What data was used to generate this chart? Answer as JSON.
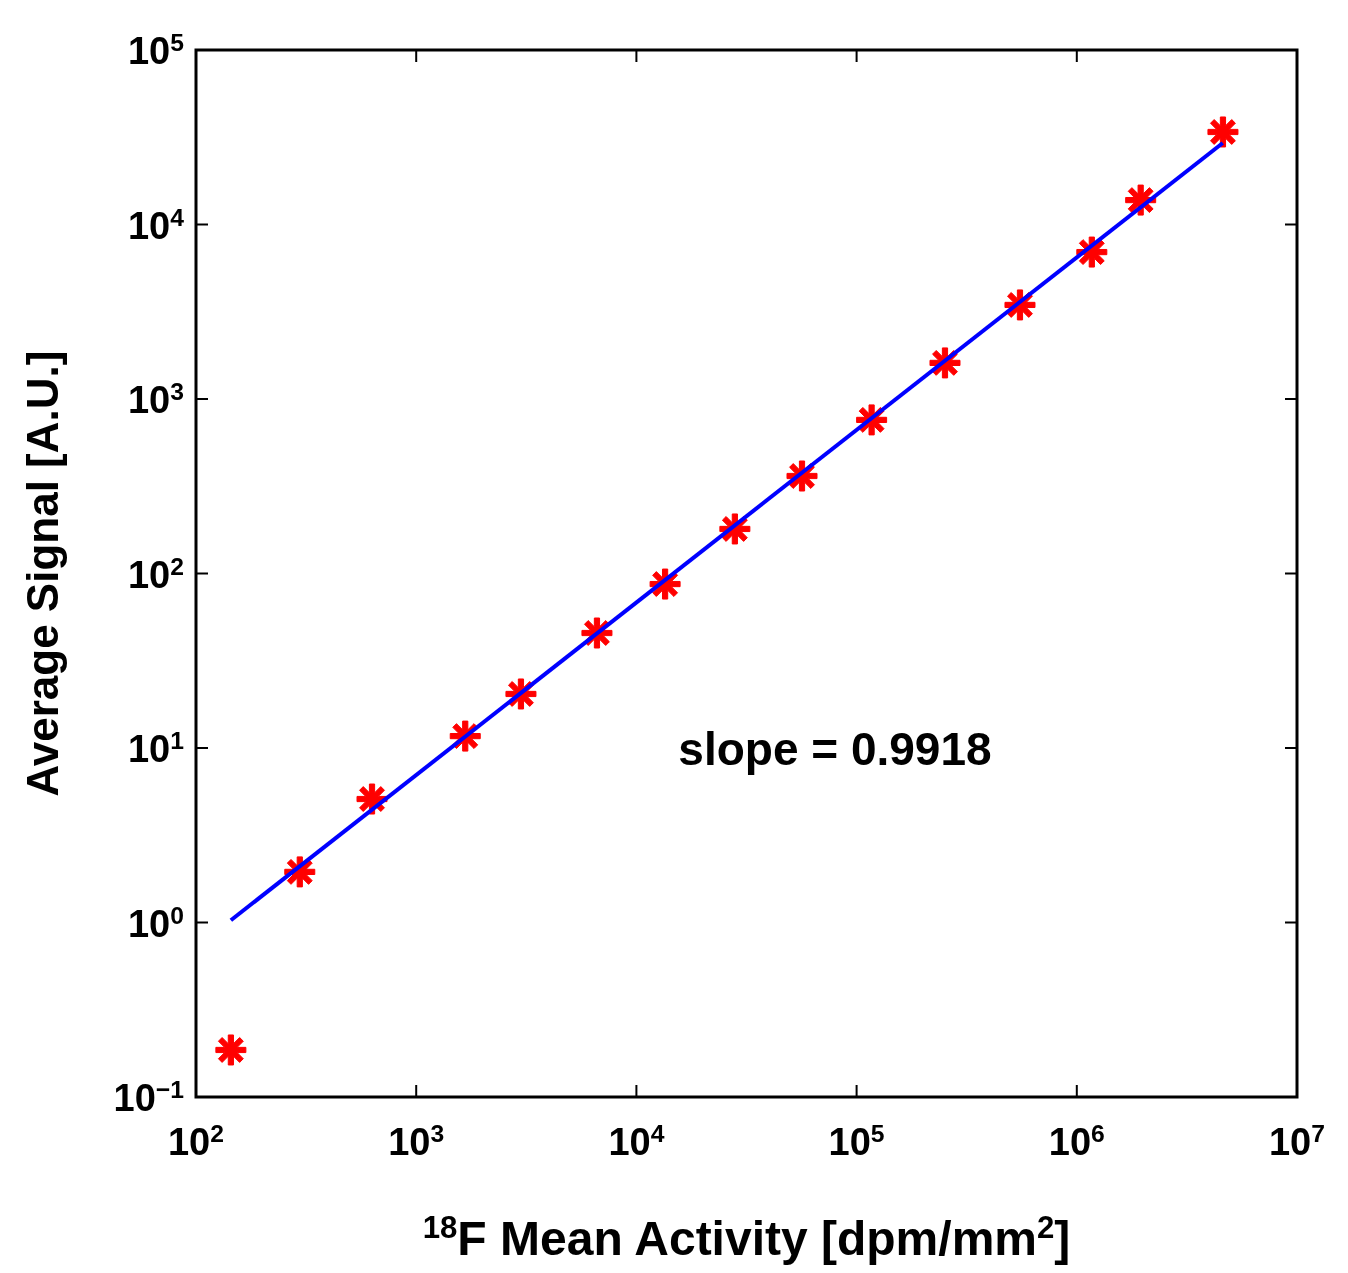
{
  "chart_data": {
    "type": "scatter",
    "xlabel": "$^{18}$F Mean Activity [dpm/mm$^{2}$]",
    "ylabel": "Average Signal [A.U.]",
    "log": "xy",
    "marker": "cross",
    "grid": false,
    "xlim": [
      100,
      10000000
    ],
    "ylim": [
      0.1,
      100000
    ],
    "xticks": [
      {
        "value": 100,
        "label": "10$^{2}$"
      },
      {
        "value": 1000,
        "label": "10$^{3}$"
      },
      {
        "value": 10000,
        "label": "10$^{4}$"
      },
      {
        "value": 100000,
        "label": "10$^{5}$"
      },
      {
        "value": 1000000,
        "label": "10$^{6}$"
      },
      {
        "value": 10000000,
        "label": "10$^{7}$"
      }
    ],
    "yticks": [
      {
        "value": 0.1,
        "label": "10$^{−1}$"
      },
      {
        "value": 1,
        "label": "10$^{0}$"
      },
      {
        "value": 10,
        "label": "10$^{1}$"
      },
      {
        "value": 100,
        "label": "10$^{2}$"
      },
      {
        "value": 1000,
        "label": "10$^{3}$"
      },
      {
        "value": 10000,
        "label": "10$^{4}$"
      },
      {
        "value": 100000,
        "label": "10$^{5}$"
      }
    ],
    "annotations": [
      "slope = 0.9918"
    ],
    "series": [
      {
        "color": "#ff0000",
        "x": [
          144,
          296,
          630,
          1670,
          2990,
          6620,
          13500,
          28000,
          56500,
          117000,
          252000,
          552000,
          1170000,
          1950000,
          4610000
        ],
        "values": [
          0.186,
          1.95,
          5.1,
          11.7,
          20.4,
          45.6,
          87,
          180,
          362,
          759,
          1610,
          3460,
          6950,
          13800,
          33900
        ]
      },
      {
        "type": "line",
        "color": "#0000ff",
        "marker": "none",
        "x": [
          144,
          4600000
        ],
        "values": [
          1.03,
          29300
        ]
      }
    ]
  }
}
